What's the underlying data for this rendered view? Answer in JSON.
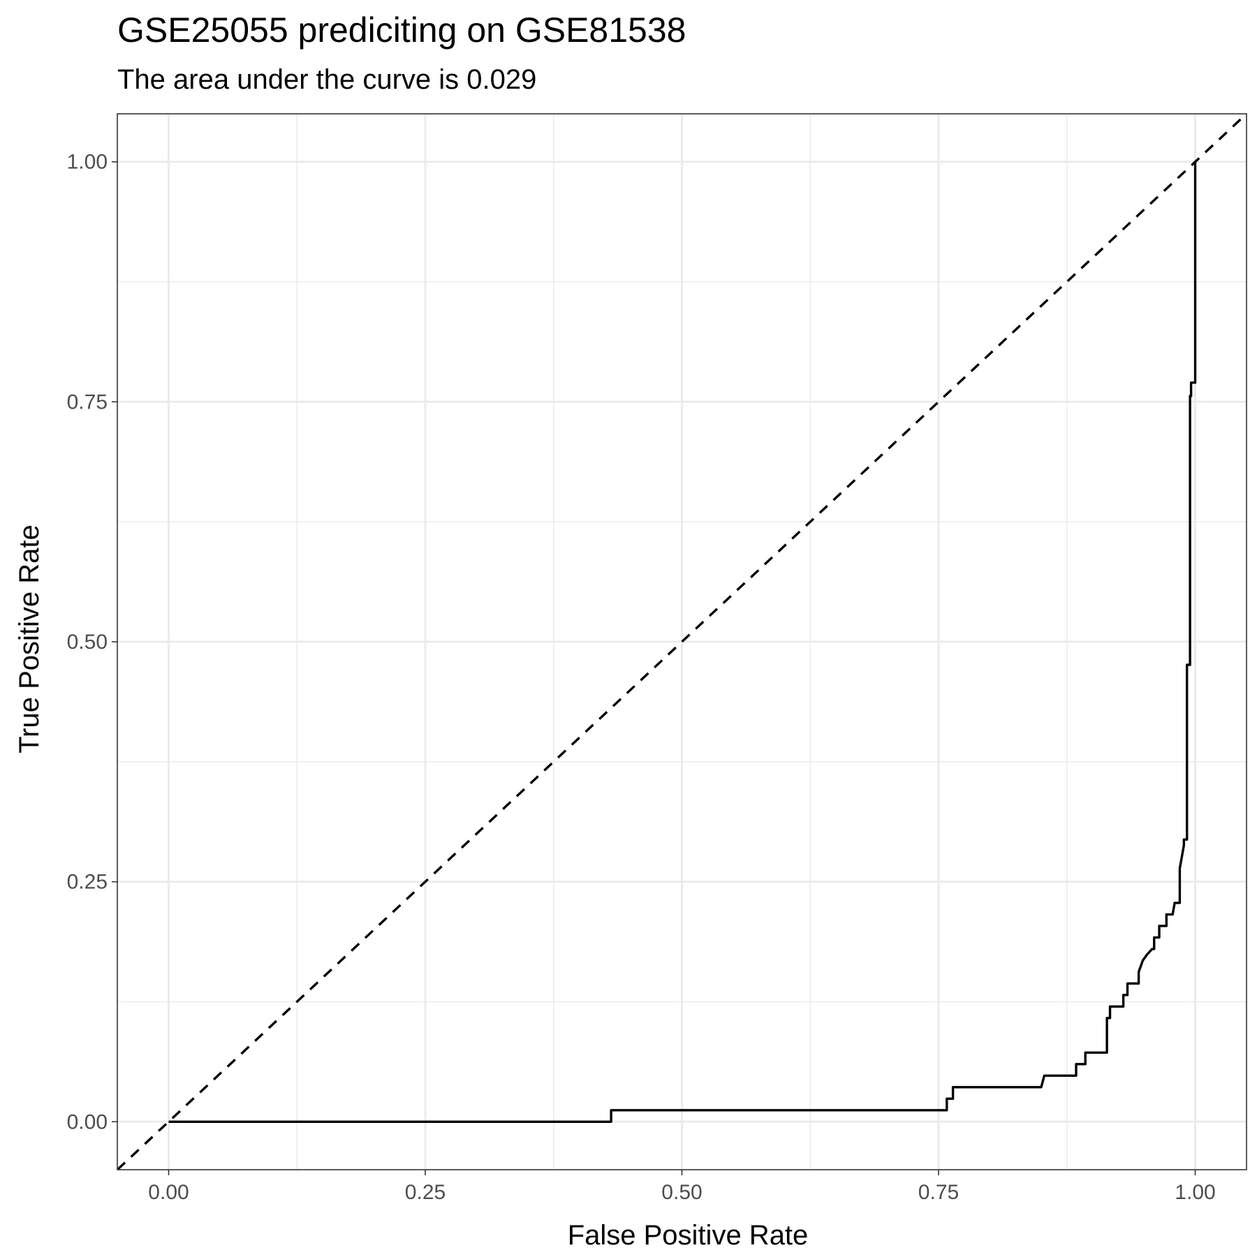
{
  "chart_data": {
    "type": "line",
    "title": "GSE25055 prediciting on GSE81538",
    "subtitle": "The area under the curve is 0.029",
    "xlabel": "False Positive Rate",
    "ylabel": "True Positive Rate",
    "xlim": [
      -0.05,
      1.05
    ],
    "ylim": [
      -0.05,
      1.05
    ],
    "grid": true,
    "x_ticks": [
      0.0,
      0.25,
      0.5,
      0.75,
      1.0
    ],
    "x_tick_labels": [
      "0.00",
      "0.25",
      "0.50",
      "0.75",
      "1.00"
    ],
    "y_ticks": [
      0.0,
      0.25,
      0.5,
      0.75,
      1.0
    ],
    "y_tick_labels": [
      "0.00",
      "0.25",
      "0.50",
      "0.75",
      "1.00"
    ],
    "series": [
      {
        "style": "solid",
        "color": "#000000",
        "x": [
          0,
          0.431,
          0.431,
          0.758,
          0.758,
          0.764,
          0.764,
          0.85,
          0.853,
          0.884,
          0.884,
          0.893,
          0.893,
          0.914,
          0.914,
          0.917,
          0.917,
          0.93,
          0.93,
          0.934,
          0.934,
          0.945,
          0.945,
          0.949,
          0.953,
          0.958,
          0.96,
          0.96,
          0.965,
          0.965,
          0.972,
          0.972,
          0.978,
          0.98,
          0.985,
          0.985,
          0.987,
          0.989,
          0.989,
          0.992,
          0.992,
          0.995,
          0.995,
          0.996,
          0.996,
          1.0,
          1.0
        ],
        "y": [
          0,
          0,
          0.012,
          0.012,
          0.024,
          0.024,
          0.036,
          0.036,
          0.048,
          0.048,
          0.06,
          0.06,
          0.072,
          0.072,
          0.108,
          0.108,
          0.12,
          0.12,
          0.132,
          0.132,
          0.144,
          0.144,
          0.156,
          0.168,
          0.174,
          0.18,
          0.18,
          0.192,
          0.192,
          0.204,
          0.204,
          0.216,
          0.216,
          0.228,
          0.228,
          0.264,
          0.276,
          0.288,
          0.294,
          0.294,
          0.476,
          0.476,
          0.756,
          0.756,
          0.77,
          0.77,
          1.0
        ]
      },
      {
        "style": "dashed",
        "color": "#000000",
        "x": [
          -0.05,
          1.05
        ],
        "y": [
          -0.05,
          1.05
        ]
      }
    ]
  }
}
